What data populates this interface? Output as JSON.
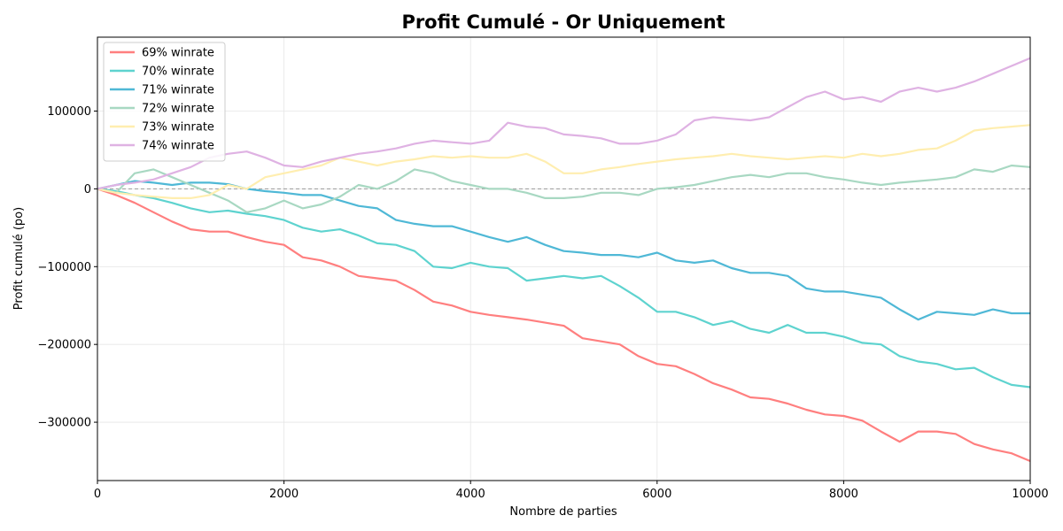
{
  "chart_data": {
    "type": "line",
    "title": "Profit Cumulé - Or Uniquement",
    "xlabel": "Nombre de parties",
    "ylabel": "Profit cumulé (po)",
    "xlim": [
      0,
      10000
    ],
    "ylim": [
      -375000,
      195000
    ],
    "xticks": [
      0,
      2000,
      4000,
      6000,
      8000,
      10000
    ],
    "xtick_labels": [
      "0",
      "2000",
      "4000",
      "6000",
      "8000",
      "10000"
    ],
    "yticks": [
      100000,
      0,
      -100000,
      -200000,
      -300000
    ],
    "ytick_labels": [
      "100000",
      "0",
      "−100000",
      "−200000",
      "−300000"
    ],
    "grid": true,
    "legend_position": "top-left",
    "reference_line": {
      "y": 0,
      "style": "dashed",
      "color": "#999999"
    },
    "series": [
      {
        "name": "69% winrate",
        "color": "#ff7f7f",
        "x": [
          0,
          200,
          400,
          600,
          800,
          1000,
          1200,
          1400,
          1600,
          1800,
          2000,
          2200,
          2400,
          2600,
          2800,
          3000,
          3200,
          3400,
          3600,
          3800,
          4000,
          4200,
          4400,
          4600,
          4800,
          5000,
          5200,
          5400,
          5600,
          5800,
          6000,
          6200,
          6400,
          6600,
          6800,
          7000,
          7200,
          7400,
          7600,
          7800,
          8000,
          8200,
          8400,
          8600,
          8800,
          9000,
          9200,
          9400,
          9600,
          9800,
          10000
        ],
        "y": [
          0,
          -8000,
          -18000,
          -30000,
          -42000,
          -52000,
          -55000,
          -55000,
          -62000,
          -68000,
          -72000,
          -88000,
          -92000,
          -100000,
          -112000,
          -115000,
          -118000,
          -130000,
          -145000,
          -150000,
          -158000,
          -162000,
          -165000,
          -168000,
          -172000,
          -176000,
          -192000,
          -196000,
          -200000,
          -215000,
          -225000,
          -228000,
          -238000,
          -250000,
          -258000,
          -268000,
          -270000,
          -276000,
          -284000,
          -290000,
          -292000,
          -298000,
          -312000,
          -325000,
          -312000,
          -312000,
          -315000,
          -328000,
          -335000,
          -340000,
          -350000
        ]
      },
      {
        "name": "70% winrate",
        "color": "#5ed3cf",
        "x": [
          0,
          200,
          400,
          600,
          800,
          1000,
          1200,
          1400,
          1600,
          1800,
          2000,
          2200,
          2400,
          2600,
          2800,
          3000,
          3200,
          3400,
          3600,
          3800,
          4000,
          4200,
          4400,
          4600,
          4800,
          5000,
          5200,
          5400,
          5600,
          5800,
          6000,
          6200,
          6400,
          6600,
          6800,
          7000,
          7200,
          7400,
          7600,
          7800,
          8000,
          8200,
          8400,
          8600,
          8800,
          9000,
          9200,
          9400,
          9600,
          9800,
          10000
        ],
        "y": [
          0,
          -3000,
          -8000,
          -12000,
          -18000,
          -25000,
          -30000,
          -28000,
          -32000,
          -35000,
          -40000,
          -50000,
          -55000,
          -52000,
          -60000,
          -70000,
          -72000,
          -80000,
          -100000,
          -102000,
          -95000,
          -100000,
          -102000,
          -118000,
          -115000,
          -112000,
          -115000,
          -112000,
          -125000,
          -140000,
          -158000,
          -158000,
          -165000,
          -175000,
          -170000,
          -180000,
          -185000,
          -175000,
          -185000,
          -185000,
          -190000,
          -198000,
          -200000,
          -215000,
          -222000,
          -225000,
          -232000,
          -230000,
          -242000,
          -252000,
          -255000
        ]
      },
      {
        "name": "71% winrate",
        "color": "#4fb8d6",
        "x": [
          0,
          200,
          400,
          600,
          800,
          1000,
          1200,
          1400,
          1600,
          1800,
          2000,
          2200,
          2400,
          2600,
          2800,
          3000,
          3200,
          3400,
          3600,
          3800,
          4000,
          4200,
          4400,
          4600,
          4800,
          5000,
          5200,
          5400,
          5600,
          5800,
          6000,
          6200,
          6400,
          6600,
          6800,
          7000,
          7200,
          7400,
          7600,
          7800,
          8000,
          8200,
          8400,
          8600,
          8800,
          9000,
          9200,
          9400,
          9600,
          9800,
          10000
        ],
        "y": [
          0,
          5000,
          10000,
          8000,
          5000,
          8000,
          8000,
          6000,
          0,
          -3000,
          -5000,
          -8000,
          -8000,
          -15000,
          -22000,
          -25000,
          -40000,
          -45000,
          -48000,
          -48000,
          -55000,
          -62000,
          -68000,
          -62000,
          -72000,
          -80000,
          -82000,
          -85000,
          -85000,
          -88000,
          -82000,
          -92000,
          -95000,
          -92000,
          -102000,
          -108000,
          -108000,
          -112000,
          -128000,
          -132000,
          -132000,
          -136000,
          -140000,
          -155000,
          -168000,
          -158000,
          -160000,
          -162000,
          -155000,
          -160000,
          -160000
        ]
      },
      {
        "name": "72% winrate",
        "color": "#a8d8c2",
        "x": [
          0,
          200,
          400,
          600,
          800,
          1000,
          1200,
          1400,
          1600,
          1800,
          2000,
          2200,
          2400,
          2600,
          2800,
          3000,
          3200,
          3400,
          3600,
          3800,
          4000,
          4200,
          4400,
          4600,
          4800,
          5000,
          5200,
          5400,
          5600,
          5800,
          6000,
          6200,
          6400,
          6600,
          6800,
          7000,
          7200,
          7400,
          7600,
          7800,
          8000,
          8200,
          8400,
          8600,
          8800,
          9000,
          9200,
          9400,
          9600,
          9800,
          10000
        ],
        "y": [
          0,
          -5000,
          20000,
          25000,
          15000,
          5000,
          -5000,
          -15000,
          -30000,
          -25000,
          -15000,
          -25000,
          -20000,
          -10000,
          5000,
          0,
          10000,
          25000,
          20000,
          10000,
          5000,
          0,
          0,
          -5000,
          -12000,
          -12000,
          -10000,
          -5000,
          -5000,
          -8000,
          0,
          2000,
          5000,
          10000,
          15000,
          18000,
          15000,
          20000,
          20000,
          15000,
          12000,
          8000,
          5000,
          8000,
          10000,
          12000,
          15000,
          25000,
          22000,
          30000,
          28000
        ]
      },
      {
        "name": "73% winrate",
        "color": "#ffeeb0",
        "x": [
          0,
          200,
          400,
          600,
          800,
          1000,
          1200,
          1400,
          1600,
          1800,
          2000,
          2200,
          2400,
          2600,
          2800,
          3000,
          3200,
          3400,
          3600,
          3800,
          4000,
          4200,
          4400,
          4600,
          4800,
          5000,
          5200,
          5400,
          5600,
          5800,
          6000,
          6200,
          6400,
          6600,
          6800,
          7000,
          7200,
          7400,
          7600,
          7800,
          8000,
          8200,
          8400,
          8600,
          8800,
          9000,
          9200,
          9400,
          9600,
          9800,
          10000
        ],
        "y": [
          0,
          -5000,
          -8000,
          -10000,
          -12000,
          -12000,
          -8000,
          5000,
          0,
          15000,
          20000,
          25000,
          30000,
          40000,
          35000,
          30000,
          35000,
          38000,
          42000,
          40000,
          42000,
          40000,
          40000,
          45000,
          35000,
          20000,
          20000,
          25000,
          28000,
          32000,
          35000,
          38000,
          40000,
          42000,
          45000,
          42000,
          40000,
          38000,
          40000,
          42000,
          40000,
          45000,
          42000,
          45000,
          50000,
          52000,
          62000,
          75000,
          78000,
          80000,
          82000
        ]
      },
      {
        "name": "74% winrate",
        "color": "#dfb2e3",
        "x": [
          0,
          200,
          400,
          600,
          800,
          1000,
          1200,
          1400,
          1600,
          1800,
          2000,
          2200,
          2400,
          2600,
          2800,
          3000,
          3200,
          3400,
          3600,
          3800,
          4000,
          4200,
          4400,
          4600,
          4800,
          5000,
          5200,
          5400,
          5600,
          5800,
          6000,
          6200,
          6400,
          6600,
          6800,
          7000,
          7200,
          7400,
          7600,
          7800,
          8000,
          8200,
          8400,
          8600,
          8800,
          9000,
          9200,
          9400,
          9600,
          9800,
          10000
        ],
        "y": [
          0,
          5000,
          8000,
          12000,
          20000,
          28000,
          40000,
          45000,
          48000,
          40000,
          30000,
          28000,
          35000,
          40000,
          45000,
          48000,
          52000,
          58000,
          62000,
          60000,
          58000,
          62000,
          85000,
          80000,
          78000,
          70000,
          68000,
          65000,
          58000,
          58000,
          62000,
          70000,
          88000,
          92000,
          90000,
          88000,
          92000,
          105000,
          118000,
          125000,
          115000,
          118000,
          112000,
          125000,
          130000,
          125000,
          130000,
          138000,
          148000,
          158000,
          168000
        ]
      }
    ]
  }
}
